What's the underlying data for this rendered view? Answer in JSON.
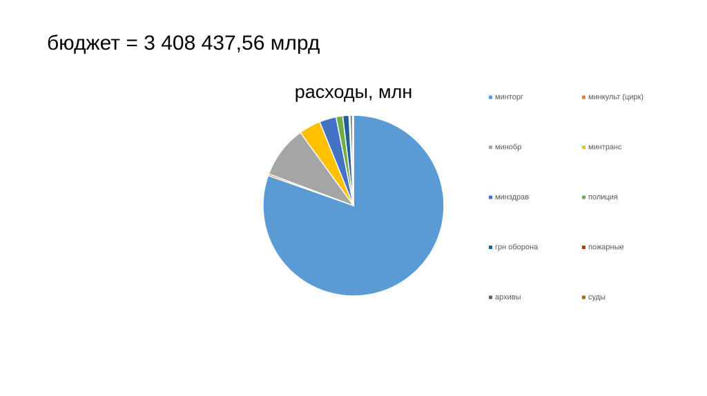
{
  "slide_title": "бюджет = 3 408 437,56 млрд",
  "chart_data": {
    "type": "pie",
    "title": "расходы, млн",
    "categories": [
      "минторг",
      "минкульт (цирк)",
      "минобр",
      "минтранс",
      "минздрав",
      "полиция",
      "грн оборона",
      "пожарные",
      "архивы",
      "суды"
    ],
    "values": [
      80.4,
      0.3,
      9.3,
      3.9,
      3.0,
      1.2,
      1.1,
      0.2,
      0.4,
      0.2
    ],
    "colors": [
      "#5b9bd5",
      "#ed7d31",
      "#a5a5a5",
      "#ffc000",
      "#4472c4",
      "#70ad47",
      "#255e91",
      "#9e480e",
      "#636363",
      "#997300"
    ],
    "legend": "right"
  }
}
